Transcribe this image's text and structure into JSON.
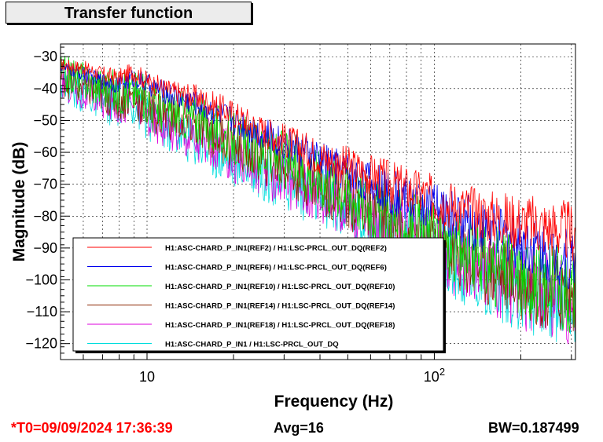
{
  "title": "Transfer function",
  "footer": {
    "t0": "*T0=09/09/2024 17:36:39",
    "avg": "Avg=16",
    "bw": "BW=0.187499"
  },
  "chart_data": {
    "type": "line",
    "title": "Transfer function",
    "xlabel": "Frequency (Hz)",
    "ylabel": "Magnitude (dB)",
    "xscale": "log",
    "xlim": [
      5,
      310
    ],
    "ylim": [
      -125,
      -26
    ],
    "grid": true,
    "legend_position": "bottom-left",
    "x_ticks": [
      {
        "value": 10,
        "label": "10"
      },
      {
        "value": 100,
        "label": "10",
        "exponent": "2"
      }
    ],
    "y_ticks": [
      -30,
      -40,
      -50,
      -60,
      -70,
      -80,
      -90,
      -100,
      -110,
      -120
    ],
    "series": [
      {
        "name": "H1:ASC-CHARD_P_IN1(REF2) / H1:LSC-PRCL_OUT_DQ(REF2)",
        "color": "#ff0000",
        "x": [
          5,
          6,
          7,
          8,
          9,
          10,
          12,
          15,
          20,
          25,
          30,
          40,
          50,
          70,
          100,
          150,
          200,
          300
        ],
        "y": [
          -32,
          -33,
          -35,
          -36,
          -34,
          -37,
          -40,
          -42,
          -47,
          -52,
          -55,
          -60,
          -63,
          -68,
          -73,
          -78,
          -80,
          -83
        ]
      },
      {
        "name": "H1:ASC-CHARD_P_IN1(REF6) / H1:LSC-PRCL_OUT_DQ(REF6)",
        "color": "#0000ee",
        "x": [
          5,
          6,
          7,
          8,
          9,
          10,
          12,
          15,
          20,
          25,
          30,
          40,
          50,
          70,
          100,
          150,
          200,
          300
        ],
        "y": [
          -33,
          -35,
          -37,
          -38,
          -36,
          -38,
          -41,
          -44,
          -49,
          -53,
          -56,
          -61,
          -65,
          -71,
          -76,
          -82,
          -86,
          -92
        ]
      },
      {
        "name": "H1:ASC-CHARD_P_IN1(REF10) / H1:LSC-PRCL_OUT_DQ(REF10)",
        "color": "#00dd00",
        "x": [
          5,
          6,
          7,
          8,
          9,
          10,
          12,
          15,
          20,
          25,
          30,
          40,
          50,
          70,
          100,
          150,
          200,
          300
        ],
        "y": [
          -34,
          -36,
          -38,
          -40,
          -39,
          -42,
          -45,
          -48,
          -54,
          -58,
          -60,
          -66,
          -70,
          -78,
          -85,
          -92,
          -96,
          -100
        ]
      },
      {
        "name": "H1:ASC-CHARD_P_IN1(REF14) / H1:LSC-PRCL_OUT_DQ(REF14)",
        "color": "#8b2500",
        "x": [
          5,
          6,
          7,
          8,
          9,
          10,
          12,
          15,
          20,
          25,
          30,
          40,
          50,
          70,
          100,
          150,
          200,
          300
        ],
        "y": [
          -35,
          -38,
          -40,
          -42,
          -41,
          -45,
          -47,
          -50,
          -55,
          -59,
          -62,
          -67,
          -72,
          -79,
          -86,
          -93,
          -97,
          -102
        ]
      },
      {
        "name": "H1:ASC-CHARD_P_IN1(REF18) / H1:LSC-PRCL_OUT_DQ(REF18)",
        "color": "#dd00dd",
        "x": [
          5,
          6,
          7,
          8,
          9,
          10,
          12,
          15,
          20,
          25,
          30,
          40,
          50,
          70,
          100,
          150,
          200,
          300
        ],
        "y": [
          -36,
          -40,
          -42,
          -43,
          -42,
          -47,
          -50,
          -54,
          -60,
          -63,
          -66,
          -71,
          -75,
          -82,
          -89,
          -95,
          -100,
          -104
        ]
      },
      {
        "name": "H1:ASC-CHARD_P_IN1 / H1:LSC-PRCL_OUT_DQ",
        "color": "#00dddd",
        "x": [
          5,
          6,
          7,
          8,
          9,
          10,
          12,
          15,
          20,
          25,
          30,
          40,
          50,
          70,
          100,
          150,
          200,
          300
        ],
        "y": [
          -37,
          -40,
          -43,
          -44,
          -43,
          -48,
          -51,
          -55,
          -61,
          -64,
          -67,
          -72,
          -76,
          -83,
          -90,
          -96,
          -101,
          -105
        ]
      }
    ]
  }
}
